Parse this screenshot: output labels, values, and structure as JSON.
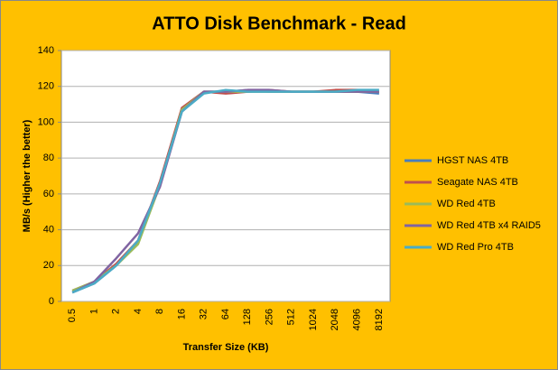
{
  "chart_data": {
    "type": "line",
    "title": "ATTO Disk Benchmark - Read",
    "x_label": "Transfer Size (KB)",
    "y_label": "MB/s (Higher the better)",
    "categories": [
      "0.5",
      "1",
      "2",
      "4",
      "8",
      "16",
      "32",
      "64",
      "128",
      "256",
      "512",
      "1024",
      "2048",
      "4096",
      "8192"
    ],
    "ylim": [
      0,
      140
    ],
    "yticks": [
      0,
      20,
      40,
      60,
      80,
      100,
      120,
      140
    ],
    "grid": true,
    "legend": "right",
    "series": [
      {
        "name": "HGST NAS 4TB",
        "color": "#4a7ebb",
        "values": [
          5,
          10,
          20,
          33,
          65,
          106,
          117,
          117,
          118,
          117,
          117,
          117,
          117,
          117,
          116
        ]
      },
      {
        "name": "Seagate NAS 4TB",
        "color": "#c0504d",
        "values": [
          6,
          11,
          21,
          34,
          67,
          108,
          117,
          116,
          117,
          118,
          117,
          117,
          118,
          118,
          117
        ]
      },
      {
        "name": "WD Red 4TB",
        "color": "#9bbb59",
        "values": [
          6,
          11,
          20,
          32,
          65,
          107,
          117,
          117,
          117,
          117,
          117,
          117,
          117,
          117,
          117
        ]
      },
      {
        "name": "WD Red 4TB x4 RAID5",
        "color": "#8064a2",
        "values": [
          5,
          11,
          24,
          38,
          64,
          106,
          117,
          117,
          118,
          118,
          117,
          117,
          117,
          117,
          117
        ]
      },
      {
        "name": "WD Red Pro 4TB",
        "color": "#4bacc6",
        "values": [
          5,
          10,
          20,
          34,
          66,
          106,
          116,
          118,
          117,
          117,
          117,
          117,
          117,
          118,
          118
        ]
      }
    ]
  }
}
